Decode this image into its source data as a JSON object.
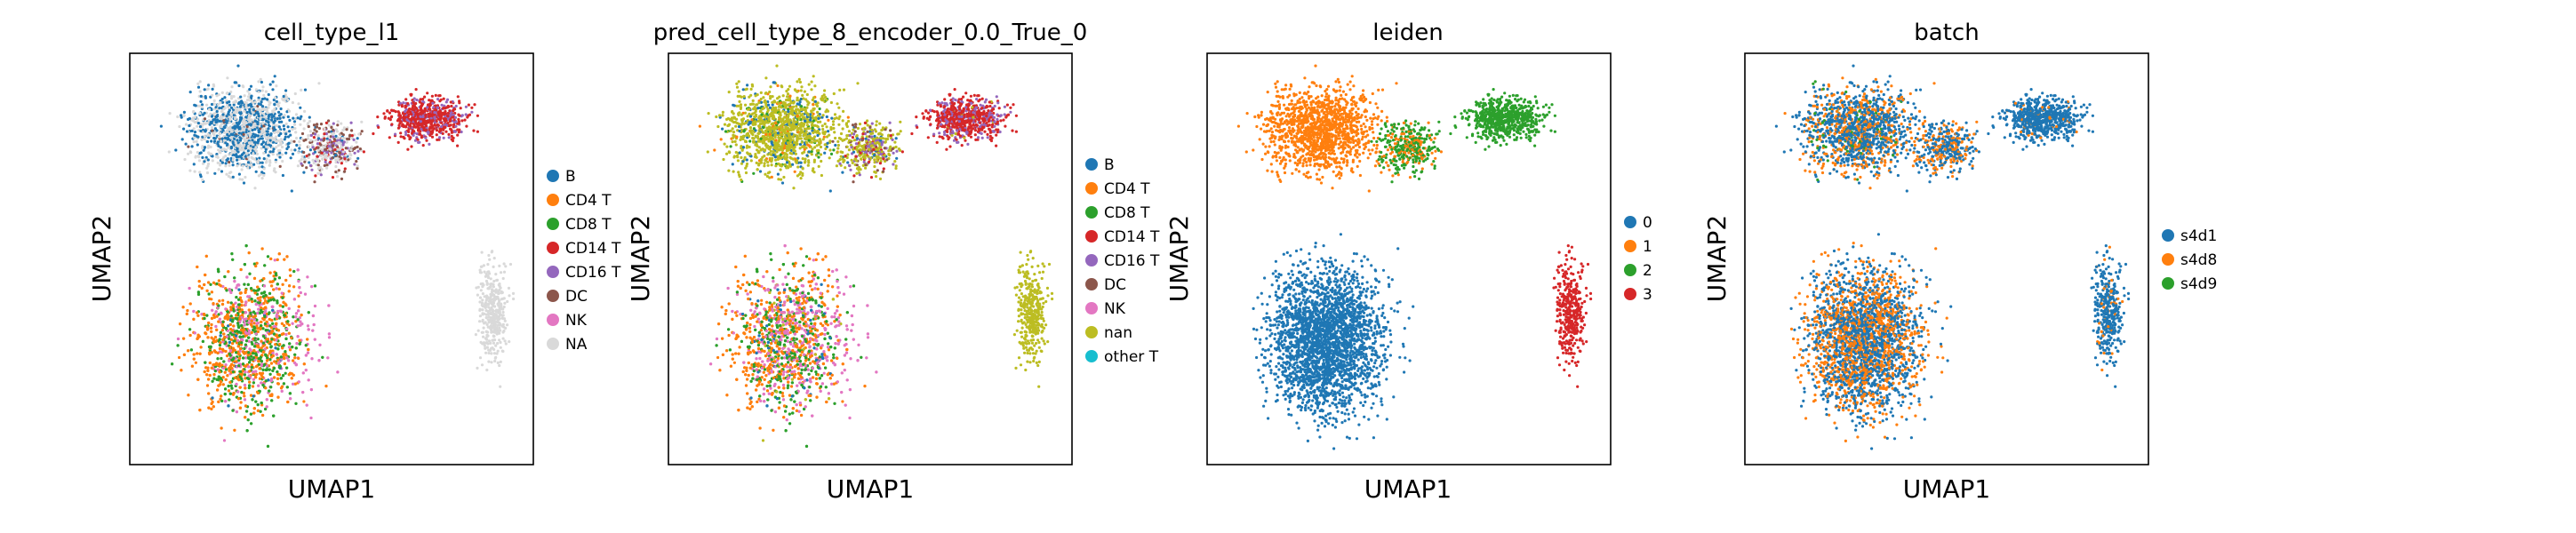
{
  "chart_data": [
    {
      "type": "scatter",
      "title": "cell_type_l1",
      "xlabel": "UMAP1",
      "ylabel": "UMAP2",
      "legend": [
        "B",
        "CD4 T",
        "CD8 T",
        "CD14 T",
        "CD16 T",
        "DC",
        "NK",
        "NA"
      ],
      "colors": [
        "#1f77b4",
        "#ff7f0e",
        "#2ca02c",
        "#d62728",
        "#9467bd",
        "#8c564b",
        "#e377c2",
        "#d9d9d9"
      ],
      "legend_position": "right"
    },
    {
      "type": "scatter",
      "title": "pred_cell_type_8_encoder_0.0_True_0",
      "xlabel": "UMAP1",
      "ylabel": "UMAP2",
      "legend": [
        "B",
        "CD4 T",
        "CD8 T",
        "CD14 T",
        "CD16 T",
        "DC",
        "NK",
        "nan",
        "other T"
      ],
      "colors": [
        "#1f77b4",
        "#ff7f0e",
        "#2ca02c",
        "#d62728",
        "#9467bd",
        "#8c564b",
        "#e377c2",
        "#bcbd22",
        "#17becf"
      ],
      "legend_position": "right"
    },
    {
      "type": "scatter",
      "title": "leiden",
      "xlabel": "UMAP1",
      "ylabel": "UMAP2",
      "legend": [
        "0",
        "1",
        "2",
        "3"
      ],
      "colors": [
        "#1f77b4",
        "#ff7f0e",
        "#2ca02c",
        "#d62728"
      ],
      "legend_position": "right"
    },
    {
      "type": "scatter",
      "title": "batch",
      "xlabel": "UMAP1",
      "ylabel": "UMAP2",
      "legend": [
        "s4d1",
        "s4d8",
        "s4d9"
      ],
      "colors": [
        "#1f77b4",
        "#ff7f0e",
        "#2ca02c"
      ],
      "legend_position": "right"
    }
  ]
}
